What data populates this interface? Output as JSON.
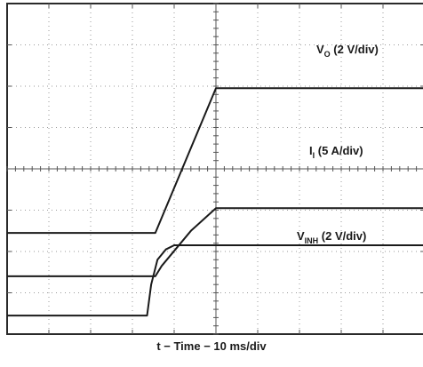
{
  "chart_data": {
    "type": "line",
    "title": "",
    "xlabel": "t − Time − 10 ms/div",
    "ylabel": "",
    "x_unit": "ms",
    "x_per_div": 10,
    "divisions": {
      "x": 10,
      "y": 8
    },
    "grid": true,
    "series": [
      {
        "name": "V_O (2 V/div)",
        "label": {
          "main": "V",
          "sub": "O",
          "rest": " (2 V/div)"
        },
        "unit": "div",
        "points": [
          [
            0,
            2.45
          ],
          [
            35.5,
            2.45
          ],
          [
            50,
            5.95
          ],
          [
            100,
            5.95
          ]
        ]
      },
      {
        "name": "I_I (5 A/div)",
        "label": {
          "main": "I",
          "sub": "I",
          "rest": " (5 A/div)"
        },
        "unit": "div",
        "points": [
          [
            0,
            1.4
          ],
          [
            35.5,
            1.4
          ],
          [
            37,
            1.65
          ],
          [
            44,
            2.5
          ],
          [
            50,
            3.05
          ],
          [
            100,
            3.05
          ]
        ]
      },
      {
        "name": "V_INH (2 V/div)",
        "label": {
          "main": "V",
          "sub": "INH",
          "rest": " (2 V/div)"
        },
        "unit": "div",
        "points": [
          [
            0,
            0.45
          ],
          [
            33.5,
            0.45
          ],
          [
            34.5,
            1.2
          ],
          [
            36,
            1.8
          ],
          [
            38,
            2.05
          ],
          [
            40,
            2.15
          ],
          [
            100,
            2.15
          ]
        ]
      }
    ]
  }
}
